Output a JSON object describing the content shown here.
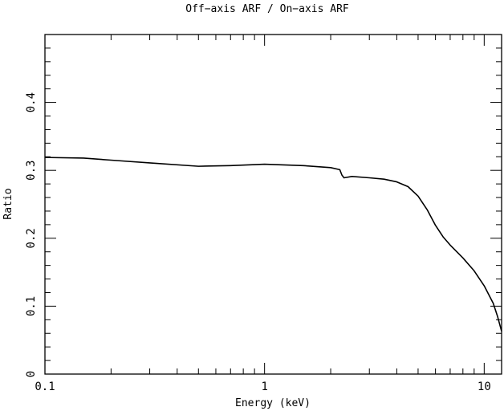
{
  "chart_data": {
    "type": "line",
    "title": "Off−axis ARF / On−axis ARF",
    "xlabel": "Energy (keV)",
    "ylabel": "Ratio",
    "x_scale": "log",
    "xlim": [
      0.1,
      12
    ],
    "ylim": [
      0,
      0.5
    ],
    "x_ticks": [
      {
        "value": 0.1,
        "label": "0.1"
      },
      {
        "value": 1,
        "label": "1"
      },
      {
        "value": 10,
        "label": "10"
      }
    ],
    "y_ticks": [
      {
        "value": 0,
        "label": "0"
      },
      {
        "value": 0.1,
        "label": "0.1"
      },
      {
        "value": 0.2,
        "label": "0.2"
      },
      {
        "value": 0.3,
        "label": "0.3"
      },
      {
        "value": 0.4,
        "label": "0.4"
      }
    ],
    "grid": false,
    "line_color": "#000000",
    "series": [
      {
        "x": [
          0.1,
          0.15,
          0.2,
          0.3,
          0.5,
          0.7,
          1.0,
          1.5,
          2.0,
          2.2,
          2.25,
          2.3,
          2.5,
          3.0,
          3.5,
          4.0,
          4.5,
          5.0,
          5.5,
          6.0,
          6.5,
          7.0,
          8.0,
          9.0,
          10.0,
          11.0,
          11.5,
          12.0
        ],
        "y": [
          0.319,
          0.318,
          0.315,
          0.311,
          0.306,
          0.307,
          0.309,
          0.307,
          0.304,
          0.301,
          0.293,
          0.289,
          0.291,
          0.289,
          0.287,
          0.283,
          0.276,
          0.262,
          0.242,
          0.219,
          0.202,
          0.19,
          0.171,
          0.152,
          0.13,
          0.104,
          0.085,
          0.063
        ]
      }
    ]
  }
}
